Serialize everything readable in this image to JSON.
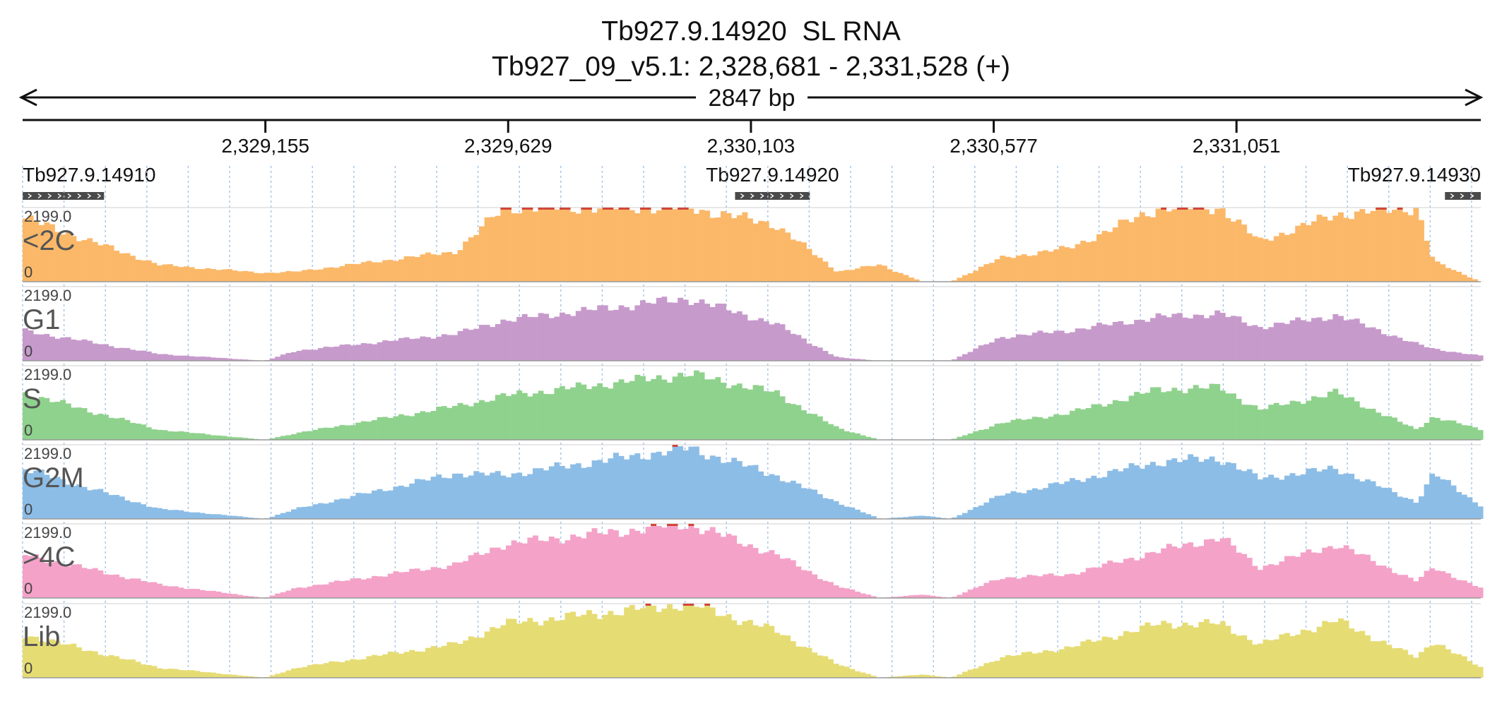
{
  "header": {
    "title": "Tb927.9.14920  SL RNA",
    "location": "Tb927_09_v5.1: 2,328,681 - 2,331,528 (+)"
  },
  "ruler": {
    "span_label": "2847 bp",
    "start": 2328681,
    "end": 2331528,
    "ticks": [
      {
        "pos": 2329155,
        "label": "2,329,155"
      },
      {
        "pos": 2329629,
        "label": "2,329,629"
      },
      {
        "pos": 2330103,
        "label": "2,330,103"
      },
      {
        "pos": 2330577,
        "label": "2,330,577"
      },
      {
        "pos": 2331051,
        "label": "2,331,051"
      }
    ]
  },
  "genes": [
    {
      "name": "Tb927.9.14910",
      "start": 2328681,
      "end": 2328840,
      "strand": "+",
      "label_align": "left"
    },
    {
      "name": "Tb927.9.14920",
      "start": 2330072,
      "end": 2330218,
      "strand": "+",
      "label_align": "center"
    },
    {
      "name": "Tb927.9.14930",
      "start": 2331458,
      "end": 2331528,
      "strand": "+",
      "label_align": "right"
    }
  ],
  "colors": {
    "<2C": "#fbb869",
    "G1": "#c79acc",
    "S": "#8fd28d",
    "G2M": "#8cbde6",
    "Lib": "#e6dc74",
    ">4C": "#f4a2c8",
    "clip": "#d0453a",
    "grid": "#9fc3e6",
    "gene_feature": "#4a4a4a"
  },
  "chart_data": {
    "type": "area",
    "title": "Tb927.9.14920  SL RNA",
    "xlabel": "Tb927_09_v5.1: 2,328,681 - 2,331,528 (+)",
    "xlim": [
      2328681,
      2331528
    ],
    "ylim": [
      0,
      2199.0
    ],
    "ymax_label": "2199.0",
    "ymin_label": "0",
    "x": [
      2328681,
      2328948,
      2329154,
      2329216,
      2329528,
      2329621,
      2329982,
      2330151,
      2330272,
      2330355,
      2330438,
      2330494,
      2330591,
      2330725,
      2330901,
      2331020,
      2331096,
      2331247,
      2331403,
      2331436,
      2331528
    ],
    "series": [
      {
        "name": "<2C",
        "values": [
          1900,
          500,
          260,
          300,
          900,
          2199,
          2199,
          1700,
          300,
          500,
          0,
          0,
          700,
          1000,
          2199,
          2199,
          1200,
          2000,
          2199,
          600,
          0
        ]
      },
      {
        "name": "G1",
        "values": [
          900,
          200,
          0,
          300,
          800,
          1200,
          1850,
          1100,
          100,
          0,
          0,
          0,
          700,
          900,
          1300,
          1400,
          1000,
          1350,
          500,
          350,
          150
        ]
      },
      {
        "name": "S",
        "values": [
          1400,
          300,
          0,
          200,
          1000,
          1300,
          1950,
          1400,
          350,
          0,
          0,
          0,
          500,
          800,
          1500,
          1550,
          900,
          1400,
          300,
          700,
          300
        ]
      },
      {
        "name": "G2M",
        "values": [
          1500,
          300,
          0,
          300,
          1350,
          1300,
          2100,
          1300,
          500,
          0,
          100,
          0,
          700,
          1100,
          1700,
          1800,
          1200,
          1500,
          500,
          1350,
          400
        ]
      },
      {
        "name": ">4C",
        "values": [
          1300,
          400,
          0,
          300,
          1000,
          1600,
          2199,
          1300,
          350,
          0,
          100,
          0,
          600,
          700,
          1400,
          1800,
          900,
          1600,
          500,
          900,
          300
        ]
      },
      {
        "name": "Lib",
        "values": [
          1300,
          300,
          0,
          300,
          1000,
          1600,
          2199,
          1400,
          400,
          0,
          100,
          0,
          600,
          900,
          1600,
          1600,
          1000,
          1700,
          600,
          1100,
          300
        ]
      }
    ]
  }
}
